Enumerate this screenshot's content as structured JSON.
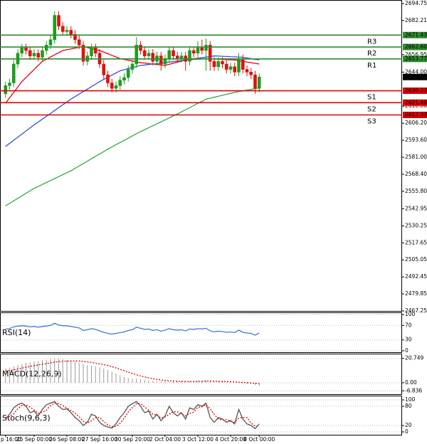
{
  "chart_data": [
    {
      "type": "candlestick",
      "categories": [
        "p 16:00",
        null,
        null,
        null,
        null,
        null,
        null,
        "25 Sep 00:00",
        null,
        null,
        null,
        null,
        null,
        null,
        null,
        "26 Sep 08:00",
        null,
        null,
        null,
        null,
        null,
        null,
        null,
        "27 Sep 16:00",
        null,
        null,
        null,
        null,
        null,
        null,
        null,
        "30 Sep 20:00",
        null,
        null,
        null,
        null,
        null,
        null,
        null,
        "2 Oct 04:00",
        null,
        null,
        null,
        null,
        null,
        null,
        null,
        "3 Oct 12:00",
        null,
        null,
        null,
        null,
        null,
        null,
        null,
        "4 Oct 20:00",
        null,
        null,
        null,
        null,
        null,
        null,
        "8 Oct 00:00"
      ],
      "open": [
        2628,
        2634,
        2636,
        2650,
        2658,
        2662,
        2660,
        2656,
        2658,
        2655,
        2660,
        2664,
        2668,
        2686,
        2678,
        2674,
        2675,
        2672,
        2668,
        2664,
        2652,
        2656,
        2662,
        2658,
        2650,
        2642,
        2636,
        2632,
        2634,
        2638,
        2640,
        2646,
        2650,
        2664,
        2660,
        2656,
        2658,
        2652,
        2656,
        2650,
        2654,
        2660,
        2656,
        2654,
        2656,
        2652,
        2660,
        2658,
        2662,
        2660,
        2664,
        2652,
        2648,
        2652,
        2650,
        2646,
        2648,
        2644,
        2654,
        2646,
        2644,
        2642,
        2632
      ],
      "high": [
        2637,
        2639,
        2653,
        2661,
        2665,
        2665,
        2663,
        2661,
        2661,
        2663,
        2667,
        2671,
        2689,
        2689,
        2681,
        2678,
        2678,
        2675,
        2671,
        2667,
        2659,
        2665,
        2665,
        2661,
        2653,
        2645,
        2639,
        2637,
        2641,
        2643,
        2649,
        2653,
        2670,
        2667,
        2663,
        2661,
        2661,
        2659,
        2659,
        2657,
        2663,
        2663,
        2659,
        2659,
        2659,
        2663,
        2663,
        2667,
        2668,
        2669,
        2667,
        2655,
        2655,
        2655,
        2653,
        2651,
        2651,
        2658,
        2657,
        2649,
        2647,
        2645,
        2643
      ],
      "low": [
        2625,
        2631,
        2633,
        2647,
        2655,
        2657,
        2653,
        2653,
        2652,
        2652,
        2657,
        2661,
        2665,
        2675,
        2671,
        2671,
        2669,
        2665,
        2661,
        2649,
        2649,
        2653,
        2655,
        2647,
        2639,
        2633,
        2629,
        2629,
        2631,
        2635,
        2637,
        2643,
        2647,
        2657,
        2653,
        2653,
        2649,
        2649,
        2645,
        2647,
        2651,
        2653,
        2651,
        2651,
        2645,
        2649,
        2655,
        2655,
        2657,
        2645,
        2645,
        2645,
        2645,
        2647,
        2643,
        2643,
        2641,
        2641,
        2643,
        2641,
        2639,
        2628,
        2629
      ],
      "close": [
        2634,
        2636,
        2650,
        2658,
        2662,
        2660,
        2656,
        2658,
        2655,
        2660,
        2664,
        2668,
        2686,
        2678,
        2674,
        2675,
        2672,
        2668,
        2664,
        2652,
        2656,
        2662,
        2658,
        2650,
        2642,
        2636,
        2632,
        2634,
        2638,
        2640,
        2646,
        2650,
        2664,
        2660,
        2656,
        2658,
        2652,
        2656,
        2650,
        2654,
        2660,
        2656,
        2654,
        2656,
        2652,
        2660,
        2658,
        2662,
        2660,
        2664,
        2652,
        2648,
        2652,
        2650,
        2646,
        2648,
        2644,
        2654,
        2646,
        2644,
        2642,
        2632,
        2640.38
      ],
      "up_color": "#1f9d1f",
      "down_color": "#e01010",
      "series": [
        {
          "color": "#e8000b",
          "values": [
            2621,
            2625,
            2629,
            2633,
            2637,
            2640,
            2643,
            2646,
            2649,
            2652,
            2653.6,
            2655.2,
            2656.8,
            2658.4,
            2660,
            2660.6,
            2661.2,
            2661.8,
            2662.4,
            2663,
            2662.2,
            2661.5,
            2660.8,
            2660,
            2658.8,
            2657.6,
            2656.4,
            2655.2,
            2654,
            2653.4,
            2652.8,
            2652.2,
            2651.6,
            2651,
            2650.7,
            2650.3,
            2650,
            2649.7,
            2649.3,
            2649,
            2649.8,
            2650.6,
            2651.4,
            2652.2,
            2653,
            2653.2,
            2653.4,
            2653.6,
            2653.8,
            2654,
            2653.9,
            2653.7,
            2653.6,
            2653.4,
            2653.3,
            2653.1,
            2653,
            2652.5,
            2652,
            2651.5,
            2651,
            2650.5,
            2650
          ]
        },
        {
          "color": "#3355cc",
          "values": [
            2589,
            2591.3,
            2593.6,
            2595.9,
            2598.1,
            2600.4,
            2602.7,
            2605,
            2607.1,
            2609.2,
            2611.3,
            2613.4,
            2615.6,
            2617.7,
            2619.8,
            2621.9,
            2624,
            2625.9,
            2627.7,
            2629.6,
            2631.4,
            2633.3,
            2635.1,
            2637,
            2638.6,
            2640.2,
            2641.8,
            2643.4,
            2645,
            2645.8,
            2646.6,
            2647.4,
            2648.2,
            2649,
            2649.3,
            2649.7,
            2650,
            2650.3,
            2650.7,
            2651,
            2651.4,
            2651.8,
            2652.2,
            2652.6,
            2653,
            2653.4,
            2653.9,
            2654.3,
            2654.7,
            2655.1,
            2655.6,
            2656,
            2655.9,
            2655.7,
            2655.6,
            2655.4,
            2655.3,
            2655.1,
            2655,
            2654.5,
            2654,
            2653.5,
            2653
          ]
        },
        {
          "color": "#33aa44",
          "values": [
            2545,
            2546.9,
            2548.7,
            2550.6,
            2552.4,
            2554.3,
            2556.1,
            2558,
            2559.4,
            2560.9,
            2562.3,
            2563.8,
            2565.2,
            2566.7,
            2568.1,
            2569.6,
            2571,
            2572.8,
            2574.6,
            2576.3,
            2578.1,
            2579.9,
            2581.7,
            2583.4,
            2585.2,
            2587,
            2588.6,
            2590.3,
            2591.9,
            2593.5,
            2595.1,
            2596.8,
            2598.4,
            2600,
            2601.4,
            2602.9,
            2604.3,
            2605.8,
            2607.2,
            2608.7,
            2610.1,
            2611.6,
            2613,
            2614.6,
            2616.1,
            2617.7,
            2619.3,
            2620.9,
            2622.4,
            2624,
            2624.7,
            2625.4,
            2626.1,
            2626.9,
            2627.6,
            2628.3,
            2629,
            2629.6,
            2630.1,
            2630.7,
            2631.2,
            2631.8,
            2632.3
          ]
        }
      ],
      "levels": {
        "names": [
          "R3",
          "R2",
          "R1",
          "S1",
          "S2",
          "S3"
        ],
        "values": [
          2671.43,
          2662.6,
          2653.77,
          2630.23,
          2621.4,
          2612.33
        ],
        "value_labels": [
          "2671.43",
          "2662.60",
          "2653.77",
          "2630.23",
          "2621.40",
          "2612.33"
        ],
        "colors": [
          "#2e8b2e",
          "#2e8b2e",
          "#2e8b2e",
          "#e00000",
          "#e00000",
          "#e00000"
        ]
      },
      "last_price": 2640.38,
      "ylim": [
        2467.25,
        2694.75
      ],
      "yticks": [
        2694.75,
        2682.21,
        2656.95,
        {
          "value": 2644.0,
          "label": "2644.00"
        },
        {
          "value": 2618.8,
          "label": "2618.80"
        },
        {
          "value": 2606.2,
          "label": "2606.20"
        },
        {
          "value": 2593.6,
          "label": "2593.60"
        },
        {
          "value": 2581.0,
          "label": "2581.00"
        },
        {
          "value": 2568.4,
          "label": "2568.40"
        },
        {
          "value": 2555.8,
          "label": "2555.80"
        },
        2542.95,
        2530.25,
        2517.65,
        2505.05,
        2492.45,
        2479.85,
        2467.25
      ],
      "grid": false
    },
    {
      "type": "line",
      "title": "RSI(14)",
      "ylim": [
        0,
        100
      ],
      "yticks": [
        100,
        70,
        30,
        0
      ],
      "grid": true,
      "series": [
        {
          "color": "#4477dd",
          "values": [
            60,
            61,
            66,
            68,
            69,
            68,
            66,
            67,
            65,
            67,
            68,
            70,
            76,
            71,
            69,
            69,
            67,
            65,
            63,
            56,
            58,
            61,
            59,
            55,
            51,
            48,
            46,
            48,
            50,
            52,
            56,
            58,
            65,
            62,
            59,
            60,
            56,
            58,
            54,
            57,
            61,
            58,
            57,
            58,
            55,
            60,
            59,
            61,
            60,
            62,
            55,
            52,
            54,
            53,
            51,
            52,
            50,
            57,
            51,
            49,
            48,
            43,
            49
          ]
        }
      ]
    },
    {
      "type": "line",
      "title": "MACD(12,26,9)",
      "ylim": [
        -8.5,
        23
      ],
      "yticks": [
        20.749,
        {
          "value": 0,
          "label": "0.00"
        },
        -6.836
      ],
      "grid": true,
      "series": [
        {
          "color": "#999999",
          "style": "histogram",
          "values": [
            12,
            13,
            14,
            15,
            16,
            17,
            17.5,
            18,
            18.5,
            19,
            19.5,
            20,
            20.5,
            20.5,
            20,
            19.5,
            19,
            18,
            17,
            16,
            15,
            14.5,
            14,
            13,
            12,
            11,
            9.5,
            8,
            6.5,
            5,
            4,
            3.5,
            3.5,
            3,
            2.5,
            2,
            1.5,
            1.2,
            1,
            1,
            1,
            1,
            1,
            1,
            1,
            1.2,
            1.3,
            1.5,
            1.6,
            1.8,
            1.5,
            1.2,
            1,
            0.8,
            0.5,
            0.3,
            0,
            0,
            -0.5,
            -0.8,
            -1,
            -2,
            -2.5
          ]
        },
        {
          "color": "#e00000",
          "dash": true,
          "values": [
            10,
            10.5,
            11,
            11.8,
            12.5,
            13.2,
            14,
            14.6,
            15.2,
            15.8,
            16.4,
            17,
            17.5,
            18,
            18.3,
            18.5,
            18.6,
            18.6,
            18.5,
            18.2,
            17.8,
            17.3,
            16.8,
            16.2,
            15.5,
            14.7,
            13.8,
            12.7,
            11.5,
            10.2,
            9,
            7.9,
            6.8,
            5.8,
            5,
            4.2,
            3.5,
            2.9,
            2.4,
            2,
            1.7,
            1.5,
            1.3,
            1.2,
            1.1,
            1.1,
            1.1,
            1.2,
            1.3,
            1.4,
            1.4,
            1.4,
            1.3,
            1.2,
            1.1,
            0.9,
            0.7,
            0.5,
            0.3,
            0.1,
            -0.1,
            -0.4,
            -0.8
          ]
        }
      ]
    },
    {
      "type": "line",
      "title": "Stoch(9,6,3)",
      "ylim": [
        0,
        100
      ],
      "yticks": [
        100,
        80,
        20,
        0
      ],
      "grid": true,
      "series": [
        {
          "color": "#555555",
          "values": [
            40,
            55,
            75,
            85,
            90,
            80,
            60,
            65,
            50,
            70,
            85,
            90,
            95,
            80,
            70,
            72,
            60,
            45,
            35,
            20,
            30,
            55,
            50,
            30,
            20,
            15,
            12,
            25,
            45,
            60,
            80,
            88,
            95,
            80,
            60,
            65,
            40,
            55,
            35,
            50,
            80,
            60,
            50,
            60,
            40,
            75,
            70,
            85,
            80,
            90,
            45,
            30,
            45,
            40,
            30,
            35,
            25,
            70,
            40,
            25,
            20,
            10,
            25
          ]
        },
        {
          "color": "#e00000",
          "dash": true,
          "values": [
            45,
            48,
            57,
            72,
            83,
            85,
            77,
            68,
            58,
            62,
            68,
            82,
            90,
            88,
            82,
            74,
            67,
            59,
            47,
            33,
            28,
            35,
            45,
            45,
            33,
            22,
            16,
            17,
            27,
            43,
            62,
            76,
            88,
            88,
            78,
            68,
            55,
            53,
            43,
            47,
            55,
            63,
            63,
            57,
            50,
            58,
            62,
            77,
            78,
            85,
            72,
            55,
            40,
            38,
            38,
            35,
            30,
            43,
            45,
            45,
            28,
            18,
            18
          ]
        }
      ]
    }
  ]
}
